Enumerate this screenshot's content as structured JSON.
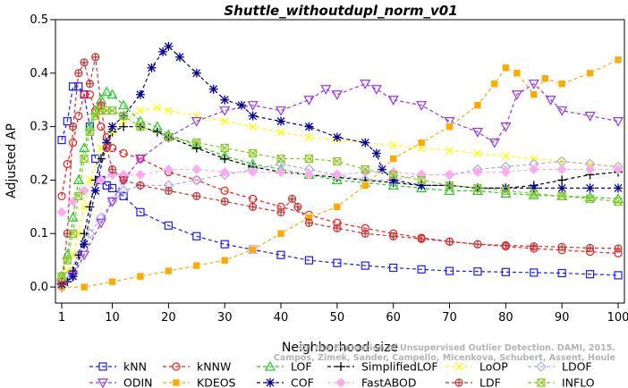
{
  "chart_data": {
    "type": "line",
    "title": "Shuttle_withoutdupl_norm_v01",
    "xlabel": "Neighborhood size",
    "ylabel": "Adjusted AP",
    "xlim": [
      1,
      100
    ],
    "ylim": [
      -0.03,
      0.5
    ],
    "xticks": [
      "1",
      "10",
      "20",
      "30",
      "40",
      "50",
      "60",
      "70",
      "80",
      "90",
      "100"
    ],
    "yticks": [
      "0.0",
      "0.1",
      "0.2",
      "0.3",
      "0.4",
      "0.5"
    ],
    "legend_position": "bottom",
    "watermark": [
      "On the Evaluation of Unsupervised Outlier Detection. DAMI, 2015.",
      "Campos, Zimek, Sander, Campello, Micenkova, Schubert, Assent, Houle"
    ],
    "series": [
      {
        "name": "kNN",
        "color": "#1a1aff",
        "marker": "square",
        "x": [
          1,
          2,
          3,
          4,
          5,
          6,
          7,
          8,
          9,
          10,
          12,
          15,
          20,
          25,
          30,
          35,
          40,
          45,
          50,
          55,
          60,
          65,
          70,
          75,
          80,
          85,
          90,
          95,
          100
        ],
        "y": [
          0.275,
          0.31,
          0.375,
          0.375,
          0.36,
          0.3,
          0.24,
          0.2,
          0.19,
          0.185,
          0.17,
          0.14,
          0.115,
          0.095,
          0.08,
          0.07,
          0.06,
          0.05,
          0.045,
          0.04,
          0.036,
          0.033,
          0.03,
          0.029,
          0.028,
          0.027,
          0.026,
          0.024,
          0.022
        ]
      },
      {
        "name": "kNNW",
        "color": "#ff1a1a",
        "marker": "circle",
        "x": [
          1,
          2,
          3,
          4,
          5,
          6,
          7,
          8,
          9,
          10,
          12,
          15,
          20,
          25,
          30,
          35,
          40,
          45,
          50,
          55,
          60,
          65,
          70,
          75,
          80,
          85,
          90,
          95,
          100
        ],
        "y": [
          0.17,
          0.23,
          0.27,
          0.32,
          0.36,
          0.36,
          0.33,
          0.3,
          0.28,
          0.26,
          0.25,
          0.24,
          0.215,
          0.2,
          0.18,
          0.165,
          0.15,
          0.135,
          0.12,
          0.11,
          0.1,
          0.092,
          0.085,
          0.08,
          0.076,
          0.072,
          0.069,
          0.066,
          0.063
        ]
      },
      {
        "name": "LOF",
        "color": "#22cc22",
        "marker": "triangle-up",
        "x": [
          1,
          2,
          3,
          4,
          5,
          6,
          7,
          8,
          9,
          10,
          12,
          15,
          18,
          20,
          25,
          30,
          35,
          40,
          45,
          50,
          55,
          60,
          65,
          70,
          75,
          80,
          85,
          90,
          95,
          100
        ],
        "y": [
          0.02,
          0.06,
          0.13,
          0.2,
          0.26,
          0.3,
          0.33,
          0.35,
          0.365,
          0.36,
          0.34,
          0.31,
          0.3,
          0.285,
          0.265,
          0.245,
          0.23,
          0.22,
          0.21,
          0.2,
          0.195,
          0.19,
          0.185,
          0.18,
          0.18,
          0.175,
          0.172,
          0.17,
          0.168,
          0.165
        ]
      },
      {
        "name": "SimplifiedLOF",
        "color": "#000000",
        "marker": "plus",
        "x": [
          1,
          2,
          3,
          4,
          5,
          6,
          7,
          8,
          9,
          10,
          12,
          15,
          18,
          20,
          25,
          30,
          35,
          40,
          45,
          50,
          55,
          60,
          65,
          70,
          75,
          80,
          85,
          90,
          95,
          100
        ],
        "y": [
          0.005,
          0.01,
          0.03,
          0.06,
          0.1,
          0.15,
          0.2,
          0.24,
          0.27,
          0.29,
          0.3,
          0.3,
          0.29,
          0.28,
          0.26,
          0.24,
          0.225,
          0.215,
          0.21,
          0.205,
          0.2,
          0.195,
          0.19,
          0.19,
          0.185,
          0.185,
          0.19,
          0.2,
          0.21,
          0.215
        ]
      },
      {
        "name": "LoOP",
        "color": "#ffff00",
        "marker": "cross",
        "x": [
          1,
          2,
          3,
          4,
          5,
          6,
          8,
          10,
          12,
          15,
          18,
          20,
          25,
          30,
          35,
          40,
          45,
          50,
          55,
          60,
          65,
          70,
          75,
          80,
          85,
          90,
          95,
          100
        ],
        "y": [
          0.01,
          0.03,
          0.06,
          0.1,
          0.15,
          0.2,
          0.26,
          0.29,
          0.31,
          0.33,
          0.335,
          0.33,
          0.32,
          0.31,
          0.3,
          0.29,
          0.28,
          0.275,
          0.27,
          0.265,
          0.26,
          0.255,
          0.25,
          0.245,
          0.24,
          0.235,
          0.23,
          0.225
        ]
      },
      {
        "name": "LDOF",
        "color": "#aaaaee",
        "marker": "diamond",
        "x": [
          1,
          2,
          4,
          6,
          8,
          10,
          12,
          15,
          20,
          25,
          30,
          35,
          40,
          45,
          50,
          55,
          60,
          65,
          70,
          75,
          80,
          85,
          90,
          95,
          100
        ],
        "y": [
          0.0,
          0.02,
          0.06,
          0.1,
          0.13,
          0.16,
          0.18,
          0.19,
          0.19,
          0.2,
          0.21,
          0.22,
          0.23,
          0.22,
          0.21,
          0.2,
          0.2,
          0.21,
          0.21,
          0.22,
          0.225,
          0.23,
          0.235,
          0.23,
          0.225
        ]
      },
      {
        "name": "ODIN",
        "color": "#9933ee",
        "marker": "triangle-down",
        "x": [
          1,
          3,
          5,
          8,
          10,
          12,
          15,
          20,
          25,
          30,
          35,
          40,
          45,
          48,
          50,
          55,
          57,
          60,
          65,
          70,
          75,
          78,
          80,
          82,
          85,
          88,
          90,
          95,
          100
        ],
        "y": [
          0.0,
          0.02,
          0.06,
          0.12,
          0.16,
          0.2,
          0.24,
          0.28,
          0.31,
          0.33,
          0.34,
          0.33,
          0.35,
          0.37,
          0.36,
          0.38,
          0.37,
          0.35,
          0.34,
          0.31,
          0.29,
          0.27,
          0.3,
          0.36,
          0.38,
          0.35,
          0.33,
          0.32,
          0.31
        ]
      },
      {
        "name": "KDEOS",
        "color": "#ffaa00",
        "marker": "square-filled",
        "x": [
          1,
          5,
          10,
          15,
          20,
          25,
          30,
          35,
          40,
          45,
          50,
          55,
          60,
          65,
          70,
          75,
          78,
          80,
          82,
          85,
          87,
          90,
          95,
          100
        ],
        "y": [
          0.0,
          0.0,
          0.01,
          0.02,
          0.03,
          0.04,
          0.05,
          0.07,
          0.1,
          0.13,
          0.15,
          0.19,
          0.24,
          0.27,
          0.3,
          0.34,
          0.38,
          0.41,
          0.4,
          0.36,
          0.39,
          0.38,
          0.4,
          0.425
        ]
      },
      {
        "name": "COF",
        "color": "#000099",
        "marker": "asterisk",
        "x": [
          1,
          3,
          5,
          7,
          9,
          10,
          12,
          15,
          17,
          19,
          20,
          22,
          25,
          28,
          30,
          33,
          35,
          40,
          45,
          50,
          55,
          57,
          58,
          60,
          65,
          70,
          75,
          80,
          85,
          90,
          95,
          100
        ],
        "y": [
          0.005,
          0.02,
          0.08,
          0.18,
          0.27,
          0.3,
          0.32,
          0.36,
          0.41,
          0.44,
          0.45,
          0.43,
          0.4,
          0.37,
          0.35,
          0.34,
          0.32,
          0.31,
          0.3,
          0.28,
          0.27,
          0.25,
          0.22,
          0.2,
          0.19,
          0.19,
          0.185,
          0.185,
          0.185,
          0.185,
          0.185,
          0.185
        ]
      },
      {
        "name": "FastABOD",
        "color": "#ffaaee",
        "marker": "diamond-filled",
        "x": [
          1,
          3,
          5,
          8,
          10,
          12,
          15,
          20,
          25,
          30,
          35,
          40,
          45,
          50,
          55,
          60,
          65,
          70,
          75,
          80,
          85,
          90,
          95,
          100
        ],
        "y": [
          0.14,
          0.16,
          0.18,
          0.2,
          0.21,
          0.21,
          0.21,
          0.22,
          0.22,
          0.215,
          0.215,
          0.215,
          0.21,
          0.21,
          0.215,
          0.215,
          0.21,
          0.21,
          0.215,
          0.215,
          0.22,
          0.22,
          0.22,
          0.22
        ]
      },
      {
        "name": "LDF",
        "color": "#cc3333",
        "marker": "circle-plus",
        "x": [
          1,
          2,
          3,
          4,
          5,
          6,
          7,
          8,
          9,
          10,
          12,
          15,
          20,
          25,
          30,
          35,
          40,
          42,
          43,
          45,
          50,
          55,
          60,
          65,
          70,
          75,
          80,
          85,
          90,
          95,
          100
        ],
        "y": [
          0.01,
          0.1,
          0.3,
          0.4,
          0.42,
          0.38,
          0.43,
          0.34,
          0.26,
          0.22,
          0.2,
          0.19,
          0.18,
          0.17,
          0.16,
          0.15,
          0.14,
          0.165,
          0.15,
          0.12,
          0.11,
          0.1,
          0.095,
          0.09,
          0.085,
          0.08,
          0.078,
          0.076,
          0.075,
          0.073,
          0.072
        ]
      },
      {
        "name": "INFLO",
        "color": "#88cc22",
        "marker": "star-square",
        "x": [
          1,
          2,
          3,
          4,
          5,
          6,
          7,
          8,
          9,
          10,
          12,
          15,
          20,
          25,
          30,
          35,
          40,
          45,
          50,
          55,
          60,
          65,
          70,
          75,
          80,
          85,
          90,
          95,
          100
        ],
        "y": [
          0.02,
          0.05,
          0.1,
          0.17,
          0.24,
          0.29,
          0.32,
          0.33,
          0.33,
          0.33,
          0.32,
          0.3,
          0.28,
          0.27,
          0.26,
          0.25,
          0.24,
          0.24,
          0.235,
          0.22,
          0.21,
          0.2,
          0.19,
          0.185,
          0.18,
          0.175,
          0.17,
          0.165,
          0.16
        ]
      }
    ]
  }
}
